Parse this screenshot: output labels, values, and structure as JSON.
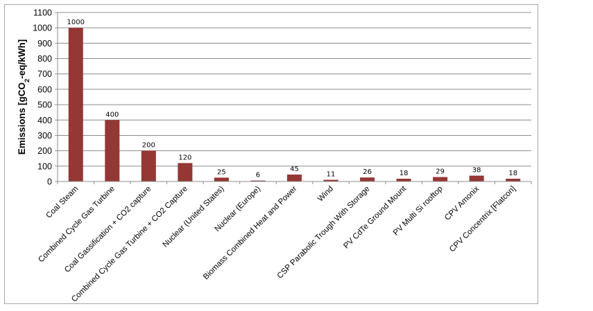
{
  "chart_data": {
    "type": "bar",
    "title": "",
    "xlabel": "",
    "ylabel": {
      "prefix": "Emissions [gCO",
      "sub": "2",
      "suffix": "-eq/kWh]"
    },
    "ylim": [
      0,
      1100
    ],
    "yticks": [
      0,
      100,
      200,
      300,
      400,
      500,
      600,
      700,
      800,
      900,
      1000,
      1100
    ],
    "grid": true,
    "bar_color": "#953735",
    "categories": [
      "Coal Steam",
      "Combined Cycle Gas Turbine",
      "Coal Gassification + CO2 capture",
      "Combined Cycle Gas Turbine + CO2 Capture",
      "Nuclear (United States)",
      "Nuclear (Europe)",
      "Biomass Combined Heat and Power",
      "Wind",
      "CSP Parabolic Trough With Storage",
      "PV CdTe Ground Mount",
      "PV Multi Si rooftop",
      "CPV Amonix",
      "CPV Concentrix [Flatcon]"
    ],
    "values": [
      1000,
      400,
      200,
      120,
      25,
      6,
      45,
      11,
      26,
      18,
      29,
      38,
      18
    ]
  }
}
